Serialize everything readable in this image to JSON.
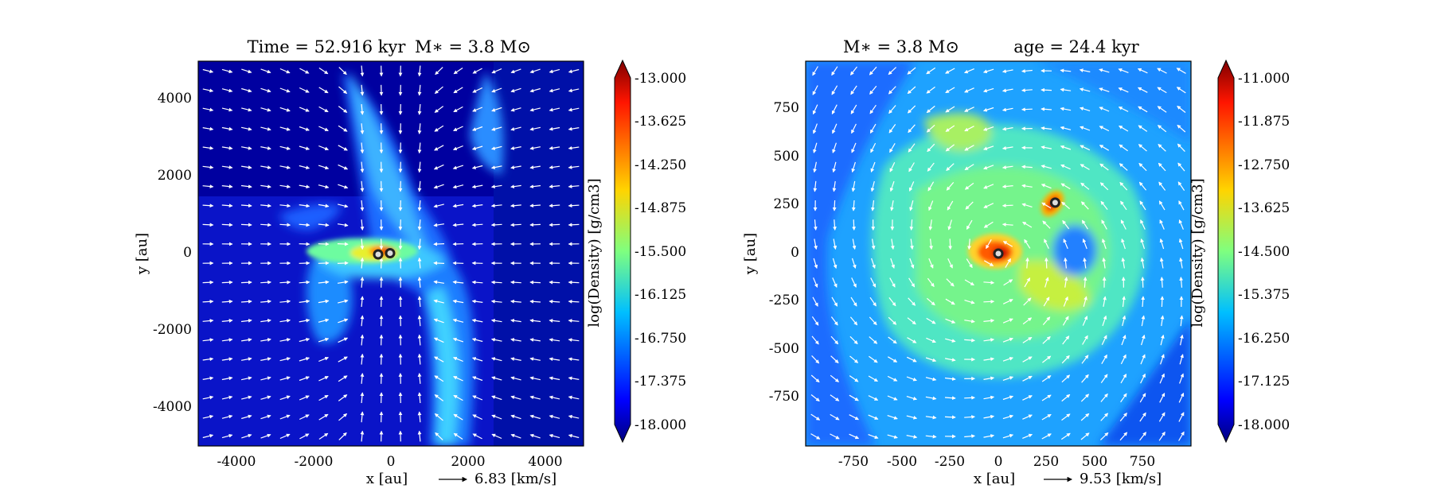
{
  "panels": [
    {
      "title_left": "Time = 52.916 kyr",
      "title_right": "M∗ = 3.8 M⊙",
      "xlabel": "x [au]",
      "ylabel": "y [au]",
      "xticks": [
        "-4000",
        "-2000",
        "0",
        "2000",
        "4000"
      ],
      "yticks": [
        "4000",
        "2000",
        "0",
        "-2000",
        "-4000"
      ],
      "xlim": [
        -5000,
        5000
      ],
      "ylim": [
        -5000,
        5000
      ],
      "arrow_key": "6.83 [km/s]",
      "cbar_label": "log(Density) [g/cm3]",
      "cbar_ticks": [
        "-13.000",
        "-13.625",
        "-14.250",
        "-14.875",
        "-15.500",
        "-16.125",
        "-16.750",
        "-17.375",
        "-18.000"
      ],
      "cbar_range": [
        -18.0,
        -13.0
      ],
      "stars_au": [
        [
          -330,
          -20
        ],
        [
          -20,
          10
        ]
      ]
    },
    {
      "title_left": "M∗ = 3.8 M⊙",
      "title_right": "age = 24.4 kyr",
      "xlabel": "x [au]",
      "ylabel": "y [au]",
      "xticks": [
        "-750",
        "-500",
        "-250",
        "0",
        "250",
        "500",
        "750"
      ],
      "yticks": [
        "750",
        "500",
        "250",
        "0",
        "-250",
        "-500",
        "-750"
      ],
      "xlim": [
        -1000,
        1000
      ],
      "ylim": [
        -1000,
        1000
      ],
      "arrow_key": "9.53 [km/s]",
      "cbar_label": "log(Density) [g/cm3]",
      "cbar_ticks": [
        "-11.000",
        "-11.875",
        "-12.750",
        "-13.625",
        "-14.500",
        "-15.375",
        "-16.250",
        "-17.125",
        "-18.000"
      ],
      "cbar_range": [
        -18.0,
        -11.0
      ],
      "stars_au": [
        [
          0,
          0
        ],
        [
          295,
          265
        ]
      ]
    }
  ],
  "chart_data": [
    {
      "type": "heatmap",
      "title": "Time = 52.916 kyr    M∗ = 3.8 M⊙",
      "xlabel": "x [au]",
      "ylabel": "y [au]",
      "xlim": [
        -5000,
        5000
      ],
      "ylim": [
        -5000,
        5000
      ],
      "colorbar": {
        "label": "log(Density) [g/cm3]",
        "range": [
          -18.0,
          -13.0
        ],
        "colormap": "jet"
      },
      "overlay": "velocity vectors (white arrows)",
      "arrow_key": "6.83 [km/s]",
      "sink_particles_au": [
        [
          -330,
          -20
        ],
        [
          -20,
          10
        ]
      ]
    },
    {
      "type": "heatmap",
      "title": "M∗ = 3.8 M⊙    age = 24.4 kyr",
      "xlabel": "x [au]",
      "ylabel": "y [au]",
      "xlim": [
        -1000,
        1000
      ],
      "ylim": [
        -1000,
        1000
      ],
      "colorbar": {
        "label": "log(Density) [g/cm3]",
        "range": [
          -18.0,
          -11.0
        ],
        "colormap": "jet"
      },
      "overlay": "velocity vectors (white arrows)",
      "arrow_key": "9.53 [km/s]",
      "sink_particles_au": [
        [
          0,
          0
        ],
        [
          295,
          265
        ]
      ]
    }
  ]
}
